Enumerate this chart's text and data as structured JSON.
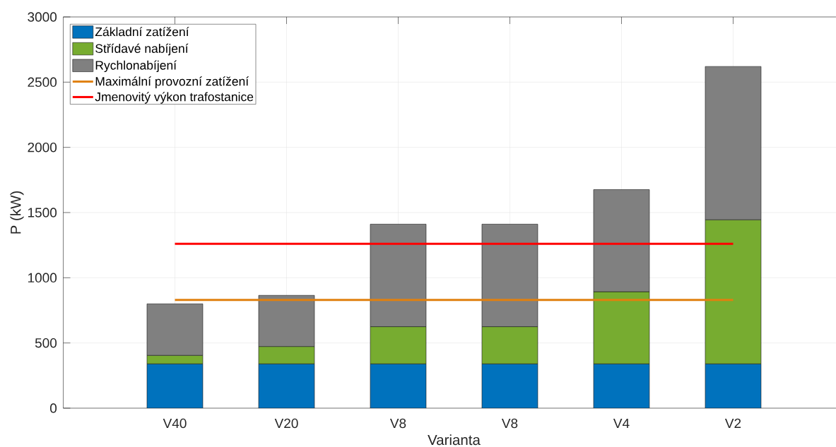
{
  "chart_data": {
    "type": "bar",
    "stacked": true,
    "xlabel": "Varianta",
    "ylabel": "P (kW)",
    "categories": [
      "V40",
      "V20",
      "V8",
      "V8",
      "V4",
      "V2"
    ],
    "series": [
      {
        "name": "Základní zatížení",
        "color": "#0072bd",
        "values": [
          340,
          340,
          340,
          340,
          340,
          340
        ]
      },
      {
        "name": "Střídavé nabíjení",
        "color": "#77ac30",
        "values": [
          65,
          133,
          285,
          285,
          553,
          1105
        ]
      },
      {
        "name": "Rychlonabíjení",
        "color": "#808080",
        "values": [
          395,
          392,
          786,
          786,
          783,
          1175
        ]
      }
    ],
    "ref_lines": [
      {
        "axis": "y",
        "value": 830,
        "label": "Maximální provozní zatížení",
        "color": "#e0800f",
        "line_style": "solid"
      },
      {
        "axis": "y",
        "value": 1260,
        "label": "Jmenovitý výkon trafostanice",
        "color": "#ff0000",
        "line_style": "solid"
      }
    ],
    "ylim": [
      0,
      3000
    ],
    "yticks": [
      0,
      500,
      1000,
      1500,
      2000,
      2500,
      3000
    ],
    "grid": true,
    "legend": "top left"
  }
}
